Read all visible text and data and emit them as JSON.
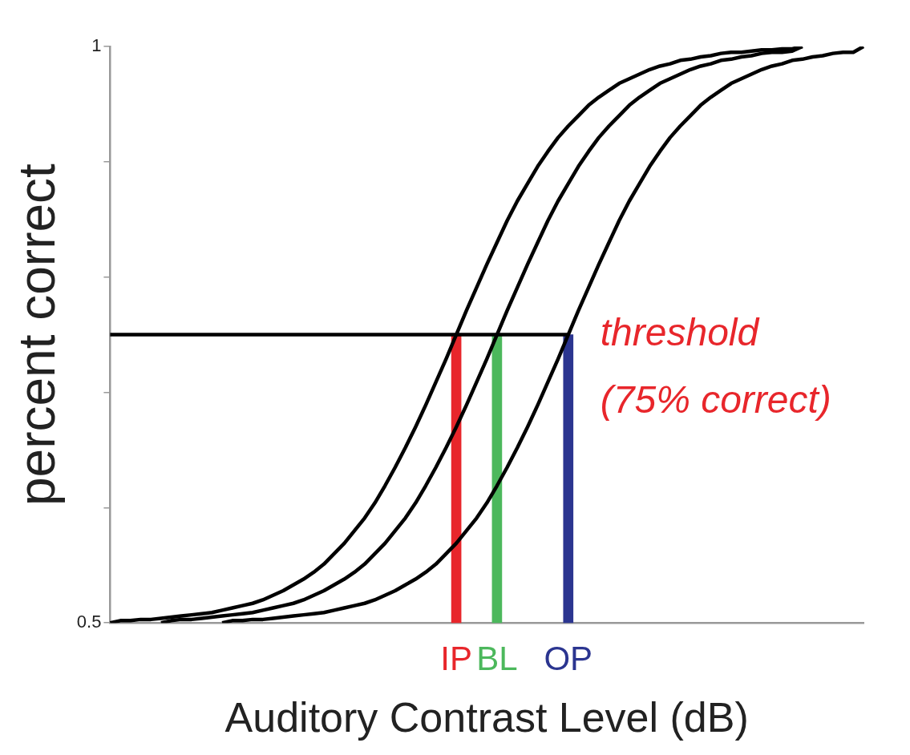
{
  "chart_data": {
    "type": "line",
    "xlabel": "Auditory Contrast Level (dB)",
    "ylabel": "percent correct",
    "categories": [
      null,
      null,
      null,
      null,
      null,
      null,
      null,
      null,
      null,
      null,
      null,
      null,
      null,
      null,
      null,
      null,
      null,
      null,
      null,
      null,
      null,
      null,
      null,
      null,
      null,
      null,
      null,
      null,
      null,
      null,
      null,
      null,
      null,
      null,
      "IP",
      null,
      null,
      null,
      "BL",
      null,
      null,
      null,
      null,
      null,
      null,
      "OP",
      null,
      null,
      null,
      null,
      null,
      null,
      null,
      null,
      null,
      null,
      null,
      null,
      null,
      null,
      null,
      null,
      null,
      null,
      null,
      null,
      null,
      null,
      null,
      null,
      null,
      null,
      null,
      null,
      null
    ],
    "series": [
      {
        "color": "#000000",
        "values": [
          0.5,
          0.502,
          0.502,
          0.503,
          0.503,
          0.504,
          0.505,
          0.506,
          0.507,
          0.508,
          0.509,
          0.511,
          0.513,
          0.515,
          0.517,
          0.52,
          0.524,
          0.528,
          0.533,
          0.538,
          0.544,
          0.551,
          0.56,
          0.569,
          0.58,
          0.591,
          0.604,
          0.619,
          0.635,
          0.652,
          0.67,
          0.689,
          0.709,
          0.729,
          0.75,
          0.771,
          0.791,
          0.811,
          0.83,
          0.849,
          0.866,
          0.881,
          0.896,
          0.909,
          0.921,
          0.931,
          0.94,
          0.949,
          0.956,
          0.962,
          0.968,
          0.972,
          0.976,
          0.98,
          0.983,
          0.985,
          0.988,
          0.989,
          0.991,
          0.992,
          0.994,
          0.995,
          0.995,
          0.996,
          0.997,
          0.997,
          0.998,
          0.998,
          1,
          null,
          null,
          null,
          null,
          null,
          null
        ]
      },
      {
        "color": "#000000",
        "values": [
          null,
          null,
          null,
          null,
          null,
          0.5,
          0.502,
          0.503,
          0.503,
          0.504,
          0.505,
          0.506,
          0.507,
          0.508,
          0.509,
          0.511,
          0.513,
          0.515,
          0.517,
          0.52,
          0.524,
          0.528,
          0.533,
          0.538,
          0.544,
          0.551,
          0.56,
          0.569,
          0.58,
          0.591,
          0.604,
          0.619,
          0.635,
          0.652,
          0.67,
          0.689,
          0.709,
          0.729,
          0.75,
          0.771,
          0.791,
          0.811,
          0.83,
          0.849,
          0.866,
          0.881,
          0.896,
          0.909,
          0.921,
          0.931,
          0.94,
          0.949,
          0.956,
          0.962,
          0.968,
          0.972,
          0.976,
          0.98,
          0.983,
          0.985,
          0.988,
          0.989,
          0.991,
          0.992,
          0.994,
          0.995,
          0.995,
          0.996,
          1,
          null,
          null,
          null,
          null,
          null,
          null
        ]
      },
      {
        "color": "#000000",
        "values": [
          null,
          null,
          null,
          null,
          null,
          null,
          null,
          null,
          null,
          null,
          null,
          0.5,
          0.502,
          0.502,
          0.503,
          0.503,
          0.504,
          0.505,
          0.506,
          0.507,
          0.508,
          0.509,
          0.511,
          0.513,
          0.515,
          0.517,
          0.52,
          0.524,
          0.528,
          0.533,
          0.538,
          0.544,
          0.551,
          0.56,
          0.569,
          0.58,
          0.591,
          0.604,
          0.619,
          0.635,
          0.652,
          0.67,
          0.689,
          0.709,
          0.729,
          0.75,
          0.771,
          0.791,
          0.811,
          0.83,
          0.849,
          0.866,
          0.881,
          0.896,
          0.909,
          0.921,
          0.931,
          0.94,
          0.949,
          0.956,
          0.962,
          0.968,
          0.972,
          0.976,
          0.98,
          0.983,
          0.985,
          0.988,
          0.989,
          0.991,
          0.992,
          0.994,
          0.995,
          0.995,
          1
        ]
      },
      {
        "color": "#000000",
        "values": [
          0.75,
          0.75,
          0.75,
          0.75,
          0.75,
          0.75,
          0.75,
          0.75,
          0.75,
          0.75,
          0.75,
          0.75,
          0.75,
          0.75,
          0.75,
          0.75,
          0.75,
          0.75,
          0.75,
          0.75,
          0.75,
          0.75,
          0.75,
          0.75,
          0.75,
          0.75,
          0.75,
          0.75,
          0.75,
          0.75,
          0.75,
          0.75,
          0.75,
          0.75,
          0.75,
          0.75,
          0.75,
          0.75,
          0.75,
          0.75,
          0.75,
          0.75,
          0.75,
          0.75,
          0.75,
          0.75,
          null,
          null,
          null,
          null,
          null,
          null,
          null,
          null,
          null,
          null,
          null,
          null,
          null,
          null,
          null,
          null,
          null,
          null,
          null,
          null,
          null,
          null,
          null,
          null,
          null,
          null,
          null,
          null,
          null
        ]
      },
      {
        "type": "bar",
        "colors": [
          null,
          null,
          null,
          null,
          null,
          null,
          null,
          null,
          null,
          null,
          null,
          null,
          null,
          null,
          null,
          null,
          null,
          null,
          null,
          null,
          null,
          null,
          null,
          null,
          null,
          null,
          null,
          null,
          null,
          null,
          null,
          null,
          null,
          null,
          "#e8262b",
          null,
          null,
          null,
          "#4cb85c",
          null,
          null,
          null,
          null,
          null,
          null,
          "#2b3590",
          null,
          null,
          null,
          null,
          null,
          null,
          null,
          null,
          null,
          null,
          null,
          null,
          null,
          null,
          null,
          null,
          null,
          null,
          null,
          null,
          null,
          null,
          null,
          null,
          null,
          null,
          null,
          null,
          null
        ],
        "values": [
          null,
          null,
          null,
          null,
          null,
          null,
          null,
          null,
          null,
          null,
          null,
          null,
          null,
          null,
          null,
          null,
          null,
          null,
          null,
          null,
          null,
          null,
          null,
          null,
          null,
          null,
          null,
          null,
          null,
          null,
          null,
          null,
          null,
          null,
          0.75,
          null,
          null,
          null,
          0.75,
          null,
          null,
          null,
          null,
          null,
          null,
          0.75,
          null,
          null,
          null,
          null,
          null,
          null,
          null,
          null,
          null,
          null,
          null,
          null,
          null,
          null,
          null,
          null,
          null,
          null,
          null,
          null,
          null,
          null,
          null,
          null,
          null,
          null,
          null,
          null,
          null
        ]
      }
    ],
    "ylim": [
      0.5,
      1
    ],
    "yticks": [
      0.5,
      {
        "value": 0.6,
        "label": null
      },
      {
        "value": 0.7,
        "label": null
      },
      {
        "value": 0.8,
        "label": null
      },
      {
        "value": 0.9,
        "label": null
      },
      1
    ],
    "grid": false,
    "annotations": [
      {
        "text": "threshold",
        "x": "OP",
        "y": 0.75
      },
      "(75% correct)"
    ]
  }
}
